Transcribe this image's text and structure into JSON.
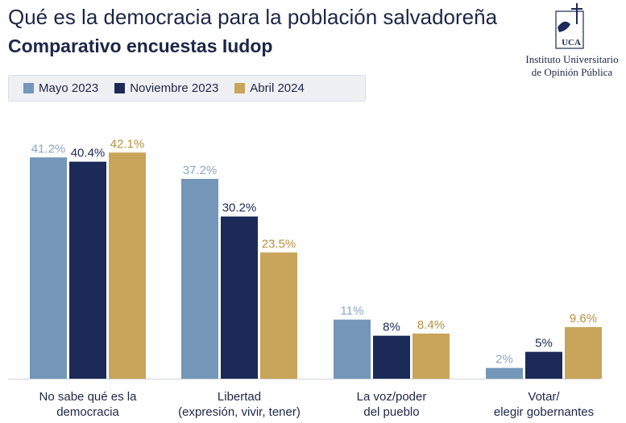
{
  "header": {
    "title": "Qué es la democracia para la población salvadoreña",
    "subtitle": "Comparativo encuestas Iudop"
  },
  "logo": {
    "letters": "UCA",
    "org_line1": "Instituto Universitario",
    "org_line2": "de Opinión Pública"
  },
  "colors": {
    "mayo_2023": "#7496b9",
    "noviembre_2023": "#1c2a57",
    "abril_2024": "#c9a55a",
    "label_mayo": "#8aa6c4",
    "label_noviembre": "#1c2a57",
    "label_abril": "#b8913c"
  },
  "chart_data": {
    "type": "bar",
    "categories": [
      [
        "No sabe qué es la",
        "democracia"
      ],
      [
        "Libertad",
        "(expresión, vivir, tener)"
      ],
      [
        "La voz/poder",
        "del pueblo"
      ],
      [
        "Votar/",
        "elegir gobernantes"
      ]
    ],
    "series": [
      {
        "name": "Mayo 2023",
        "values": [
          41.2,
          37.2,
          11,
          2
        ],
        "labels": [
          "41.2%",
          "37.2%",
          "11%",
          "2%"
        ]
      },
      {
        "name": "Noviembre 2023",
        "values": [
          40.4,
          30.2,
          8,
          5
        ],
        "labels": [
          "40.4%",
          "30.2%",
          "8%",
          "5%"
        ]
      },
      {
        "name": "Abril 2024",
        "values": [
          42.1,
          23.5,
          8.4,
          9.6
        ],
        "labels": [
          "42.1%",
          "23.5%",
          "8.4%",
          "9.6%"
        ]
      }
    ],
    "ylim": [
      0,
      45
    ],
    "grid": false,
    "legend_position": "top-left",
    "data_labels": true
  }
}
